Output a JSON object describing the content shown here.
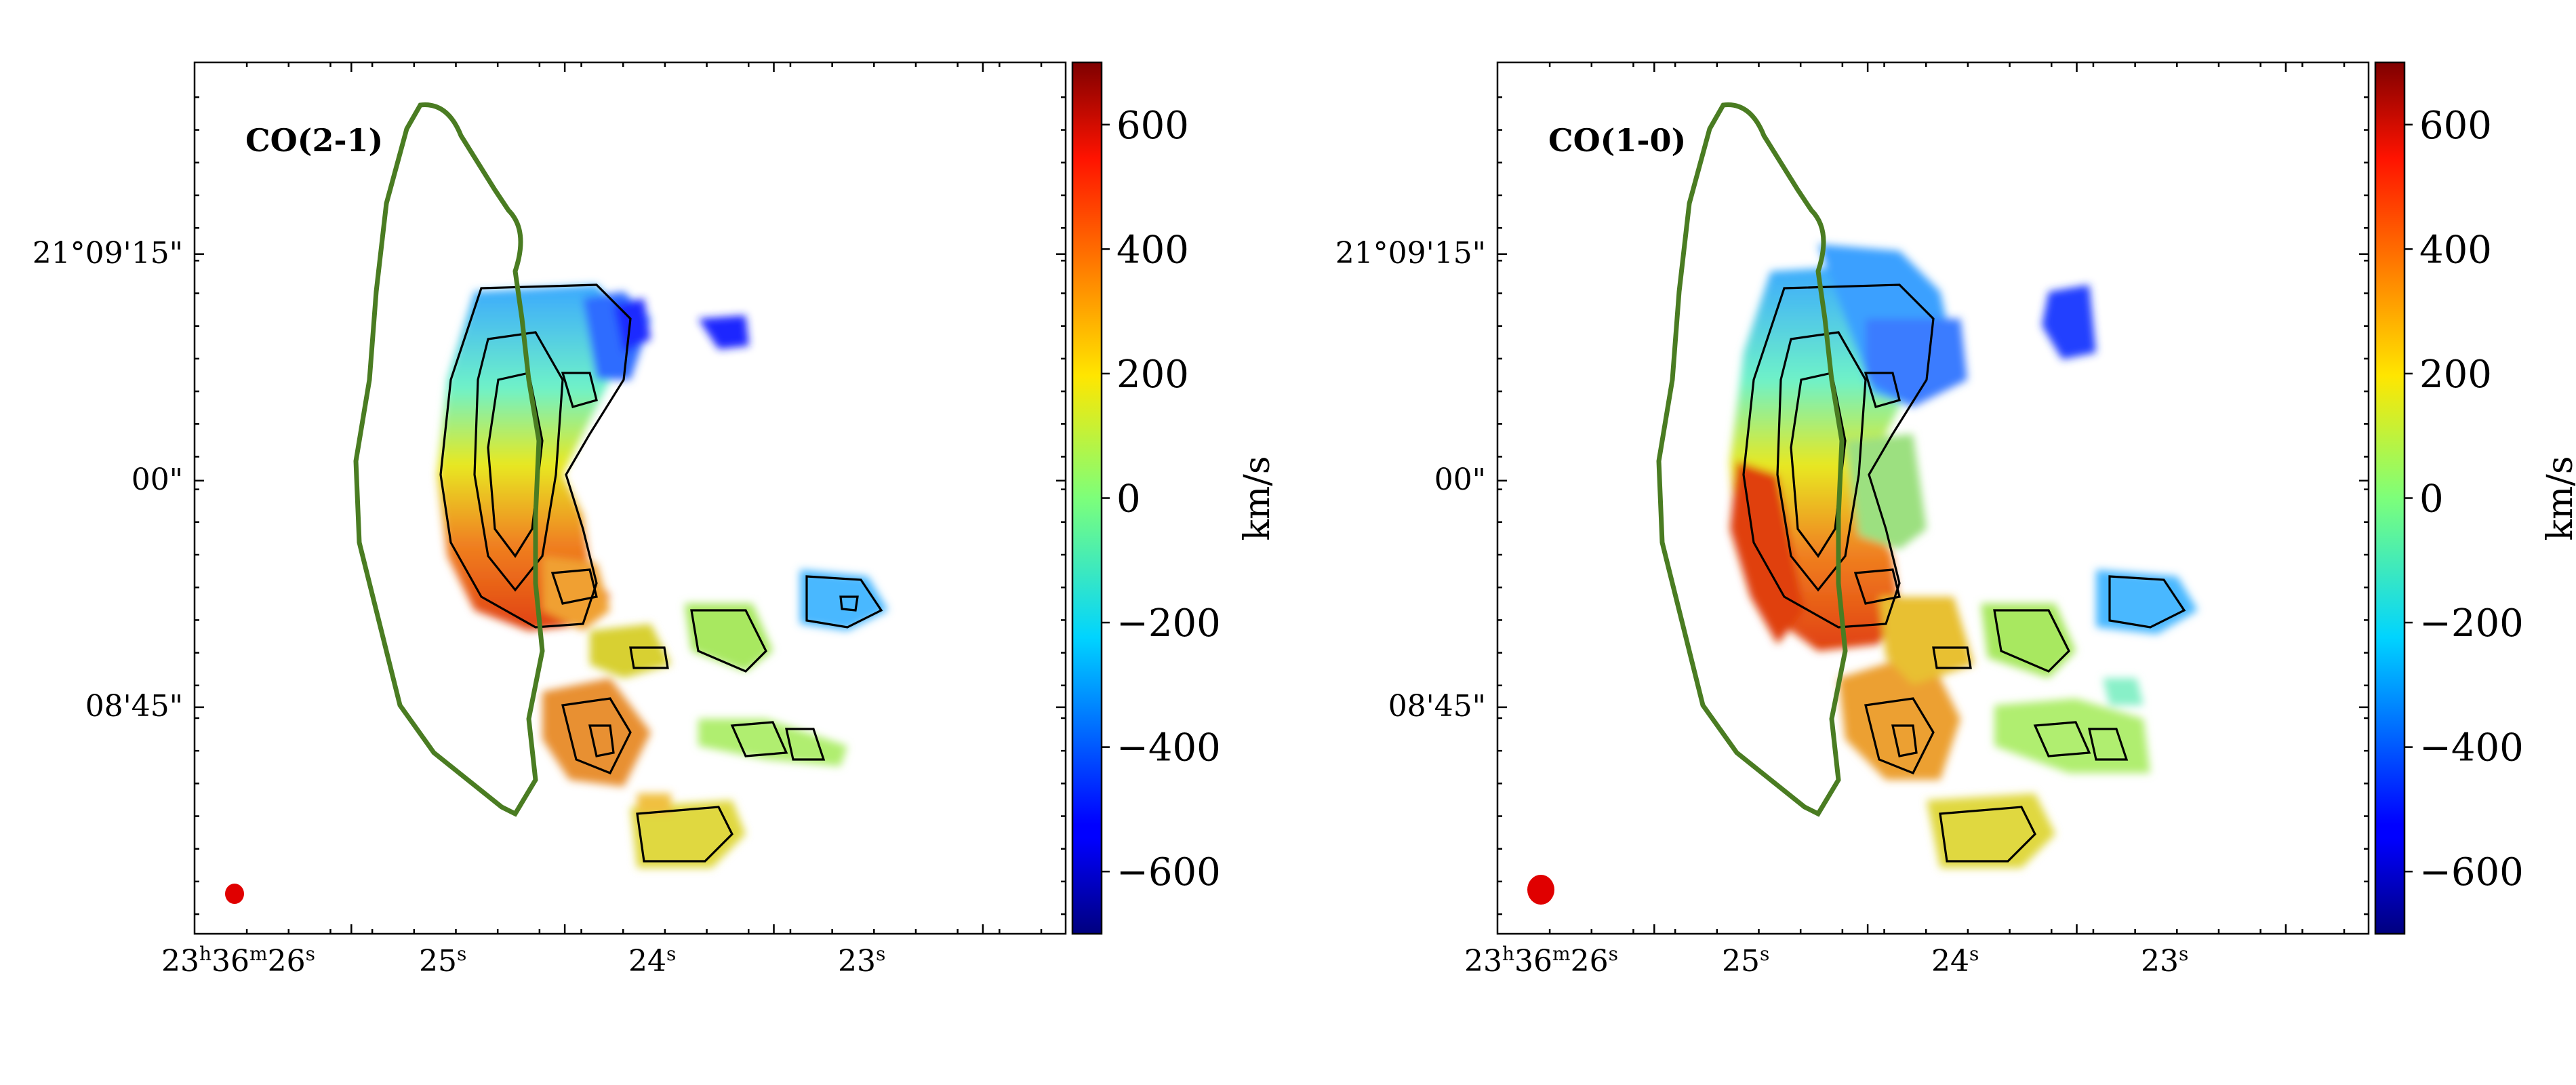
{
  "chart_data": [
    {
      "type": "heatmap",
      "panel_label": "CO(2-1)",
      "description_free": true,
      "xlabel": "",
      "ylabel": "",
      "x_ticks": [
        {
          "h": "23",
          "m": "36",
          "s": "26",
          "pre": "23",
          "hsup": "h",
          "mid": "36",
          "msup": "m",
          "post": "26",
          "ssup": "s"
        },
        {
          "main": "25",
          "sup": "s"
        },
        {
          "main": "24",
          "sup": "s"
        },
        {
          "main": "23",
          "sup": "s"
        }
      ],
      "y_ticks": [
        "21°09'15\"",
        "00\"",
        "08'45\""
      ],
      "colorbar": {
        "label": "km/s",
        "range": [
          -700,
          700
        ],
        "ticks": [
          "600",
          "400",
          "200",
          "0",
          "−200",
          "−400",
          "−600"
        ],
        "tick_values": [
          600,
          400,
          200,
          0,
          -200,
          -400,
          -600
        ]
      },
      "beam_color": "#e00000",
      "outline_color": "#4a7c22"
    },
    {
      "type": "heatmap",
      "panel_label": "CO(1-0)",
      "xlabel": "",
      "ylabel": "",
      "x_ticks": [
        {
          "pre": "23",
          "hsup": "h",
          "mid": "36",
          "msup": "m",
          "post": "26",
          "ssup": "s"
        },
        {
          "main": "25",
          "sup": "s"
        },
        {
          "main": "24",
          "sup": "s"
        },
        {
          "main": "23",
          "sup": "s"
        }
      ],
      "y_ticks": [
        "21°09'15\"",
        "00\"",
        "08'45\""
      ],
      "colorbar": {
        "label": "km/s",
        "range": [
          -700,
          700
        ],
        "ticks": [
          "600",
          "400",
          "200",
          "0",
          "−200",
          "−400",
          "−600"
        ],
        "tick_values": [
          600,
          400,
          200,
          0,
          -200,
          -400,
          -600
        ]
      },
      "beam_color": "#e00000",
      "outline_color": "#4a7c22"
    }
  ]
}
